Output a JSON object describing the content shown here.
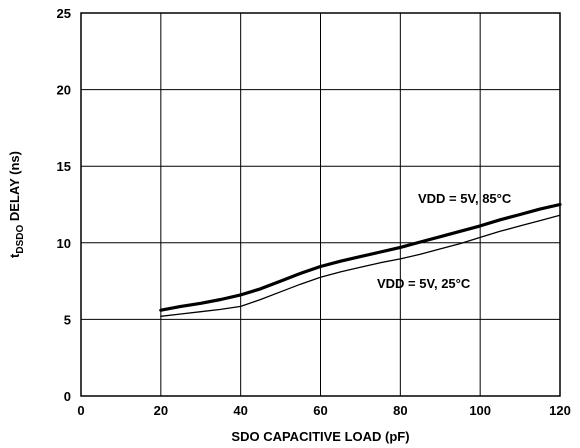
{
  "chart_data": {
    "type": "line",
    "xlabel": "SDO CAPACITIVE LOAD (pF)",
    "ylabel": {
      "prefix": "t",
      "subscript": "DSDO",
      "suffix": " DELAY (ns)"
    },
    "xlim": [
      0,
      120
    ],
    "ylim": [
      0,
      25
    ],
    "x_ticks": [
      0,
      20,
      40,
      60,
      80,
      100,
      120
    ],
    "y_ticks": [
      0,
      5,
      10,
      15,
      20,
      25
    ],
    "grid": true,
    "series": [
      {
        "name": "VDD = 5V, 85°C",
        "color": "#000000",
        "emphasis": "thick",
        "x": [
          20,
          25,
          30,
          35,
          40,
          45,
          50,
          55,
          60,
          65,
          70,
          75,
          80,
          85,
          90,
          95,
          100,
          105,
          110,
          115,
          120
        ],
        "y": [
          5.6,
          5.85,
          6.05,
          6.3,
          6.6,
          7.0,
          7.5,
          8.0,
          8.45,
          8.8,
          9.1,
          9.4,
          9.7,
          10.05,
          10.4,
          10.75,
          11.1,
          11.5,
          11.85,
          12.2,
          12.5
        ]
      },
      {
        "name": "VDD = 5V, 25°C",
        "color": "#000000",
        "emphasis": "thin",
        "x": [
          20,
          25,
          30,
          35,
          40,
          45,
          50,
          55,
          60,
          65,
          70,
          75,
          80,
          85,
          90,
          95,
          100,
          105,
          110,
          115,
          120
        ],
        "y": [
          5.2,
          5.35,
          5.5,
          5.65,
          5.85,
          6.3,
          6.8,
          7.3,
          7.75,
          8.1,
          8.4,
          8.7,
          8.95,
          9.25,
          9.6,
          9.95,
          10.35,
          10.75,
          11.1,
          11.45,
          11.8
        ]
      }
    ]
  }
}
